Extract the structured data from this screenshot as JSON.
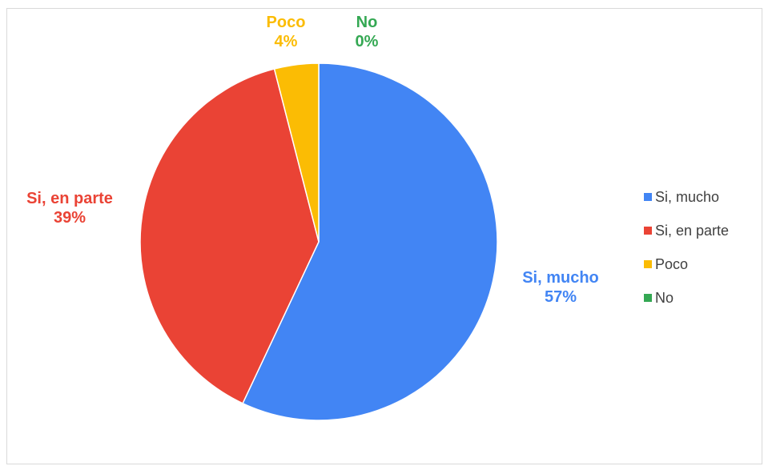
{
  "chart_data": {
    "type": "pie",
    "title": "",
    "categories": [
      "Si, mucho",
      "Si, en parte",
      "Poco",
      "No"
    ],
    "values": [
      57,
      39,
      4,
      0
    ],
    "labels": [
      "57%",
      "39%",
      "4%",
      "0%"
    ],
    "colors": [
      "#4285F4",
      "#EA4335",
      "#FBBC04",
      "#34A853"
    ],
    "start_angle": "12 o'clock",
    "direction": "clockwise",
    "legend_position": "right"
  },
  "legend": [
    {
      "label": "Si, mucho",
      "color": "#4285F4"
    },
    {
      "label": "Si, en parte",
      "color": "#EA4335"
    },
    {
      "label": "Poco",
      "color": "#FBBC04"
    },
    {
      "label": "No",
      "color": "#34A853"
    }
  ]
}
